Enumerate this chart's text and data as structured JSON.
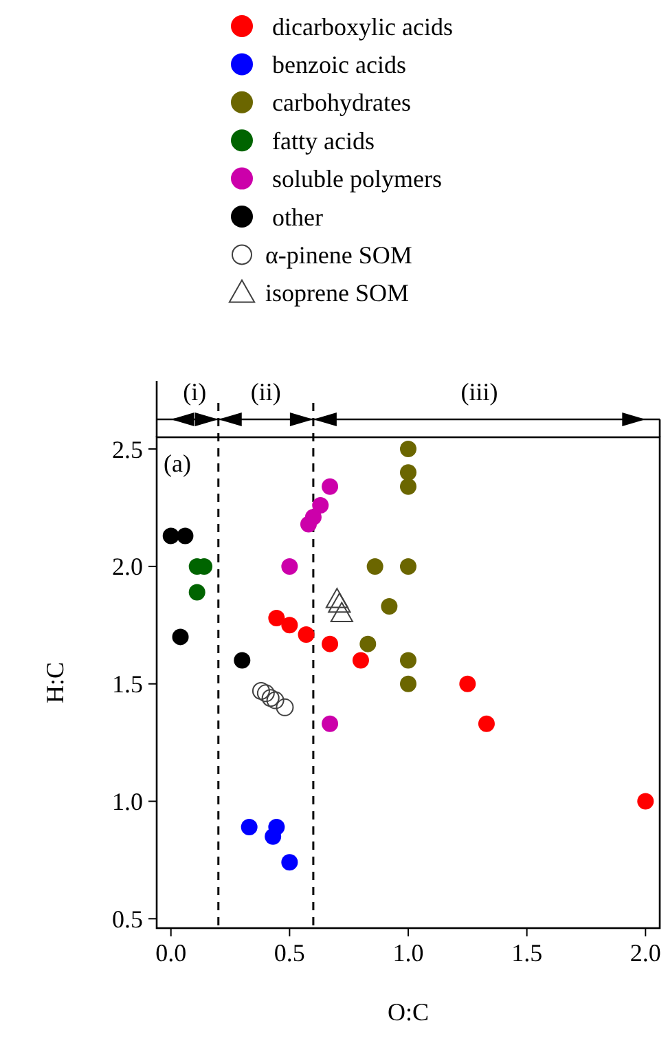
{
  "chart_data": {
    "type": "scatter",
    "xlabel": "O:C",
    "ylabel": "H:C",
    "xlim": [
      -0.06,
      2.06
    ],
    "ylim": [
      0.46,
      2.55
    ],
    "xticks": [
      {
        "value": 0,
        "label": "0.0"
      },
      {
        "value": 0.5,
        "label": "0.5"
      },
      {
        "value": 1,
        "label": "1.0"
      },
      {
        "value": 1.5,
        "label": "1.5"
      },
      {
        "value": 2,
        "label": "2.0"
      }
    ],
    "yticks": [
      {
        "value": 0.5,
        "label": "0.5"
      },
      {
        "value": 1,
        "label": "1.0"
      },
      {
        "value": 1.5,
        "label": "1.5"
      },
      {
        "value": 2,
        "label": "2.0"
      },
      {
        "value": 2.5,
        "label": "2.5"
      }
    ],
    "grid": false,
    "legend": "top left",
    "marker": "circle",
    "annotations": [
      "(a)",
      "(i)",
      "(ii)",
      "(iii)"
    ],
    "ref_lines": [
      {
        "axis": "x",
        "value": 0.2,
        "line_style": "dashed",
        "color": "#000000"
      },
      {
        "axis": "x",
        "value": 0.6,
        "line_style": "dashed",
        "color": "#000000"
      }
    ],
    "series": [
      {
        "name": "dicarboxylic acids",
        "color": "#ff0000",
        "x": [
          0.445,
          0.5,
          0.57,
          0.67,
          0.8,
          1.25,
          1.33,
          2.0
        ],
        "values": [
          1.78,
          1.75,
          1.71,
          1.67,
          1.6,
          1.5,
          1.33,
          1.0
        ]
      },
      {
        "name": "benzoic acids",
        "color": "#0000ff",
        "x": [
          0.33,
          0.445,
          0.43,
          0.5
        ],
        "values": [
          0.89,
          0.89,
          0.85,
          0.74
        ]
      },
      {
        "name": "carbohydrates",
        "color": "#6b6600",
        "x": [
          1.0,
          1.0,
          1.0,
          1.0,
          0.86,
          0.92,
          0.83,
          1.0,
          1.0
        ],
        "values": [
          2.5,
          2.4,
          2.34,
          2.0,
          2.0,
          1.83,
          1.67,
          1.6,
          1.5
        ]
      },
      {
        "name": "fatty acids",
        "color": "#006400",
        "x": [
          0.11,
          0.14,
          0.11
        ],
        "values": [
          2.0,
          2.0,
          1.89
        ]
      },
      {
        "name": "soluble polymers",
        "color": "#cc00aa",
        "x": [
          0.67,
          0.63,
          0.6,
          0.58,
          0.5,
          0.67
        ],
        "values": [
          2.34,
          2.26,
          2.21,
          2.18,
          2.0,
          1.33
        ]
      },
      {
        "name": "other",
        "color": "#000000",
        "x": [
          0.0,
          0.06,
          0.04,
          0.3
        ],
        "values": [
          2.13,
          2.13,
          1.7,
          1.6
        ]
      },
      {
        "name": "α-pinene SOM",
        "color": "#404040",
        "marker": "circle",
        "x": [
          0.38,
          0.4,
          0.42,
          0.44,
          0.48
        ],
        "values": [
          1.47,
          1.46,
          1.44,
          1.43,
          1.4
        ]
      },
      {
        "name": "isoprene SOM",
        "color": "#404040",
        "marker": "triangle",
        "x": [
          0.7,
          0.71,
          0.72
        ],
        "values": [
          1.86,
          1.84,
          1.8
        ]
      }
    ]
  }
}
